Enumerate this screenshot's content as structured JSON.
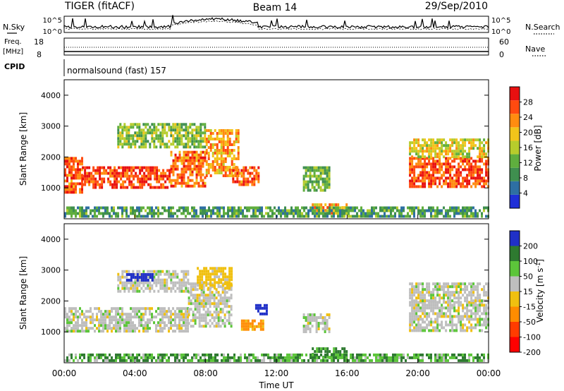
{
  "header": {
    "radar": "TIGER (fitACF)",
    "beam": "Beam 14",
    "date": "29/Sep/2010"
  },
  "summary_panel": {
    "nsky_label": "N.Sky",
    "nsky_ticks": [
      "10^5",
      "10^0"
    ],
    "nsearch_label": "N.Search",
    "nsearch_ticks": [
      "10^5",
      "10^0"
    ],
    "freq_label_line1": "Freq.",
    "freq_label_line2": "[MHz]",
    "freq_ticks": [
      "18",
      "8"
    ],
    "nave_label": "Nave",
    "nave_ticks": [
      "60",
      "0"
    ],
    "cpid_label": "CPID",
    "program": "normalsound (fast) 157"
  },
  "x_axis": {
    "label": "Time UT",
    "ticks": [
      "00:00",
      "04:00",
      "08:00",
      "12:00",
      "16:00",
      "20:00",
      "00:00"
    ]
  },
  "colors": {
    "power_scale": [
      "#1f2fd8",
      "#2e6fa3",
      "#3f8f4f",
      "#5fae3e",
      "#b7cc2c",
      "#f2c41a",
      "#ff8c10",
      "#ff4a10",
      "#e81010"
    ],
    "velocity_scale": [
      "#2030c8",
      "#2e7a30",
      "#5cc53a",
      "#bebebe",
      "#f0c010",
      "#ff8c00",
      "#ff3c00",
      "#ff0000"
    ]
  },
  "chart_data": [
    {
      "type": "heatmap",
      "panel": "power",
      "ylabel": "Slant Range [km]",
      "xlabel": "",
      "xlim_hours": [
        0,
        24
      ],
      "ylim": [
        0,
        4500
      ],
      "yticks": [
        "1000",
        "2000",
        "3000",
        "4000"
      ],
      "colorbar": {
        "label": "Power [dB]",
        "ticks": [
          "28",
          "24",
          "20",
          "16",
          "12",
          "8",
          "4"
        ],
        "range": [
          0,
          32
        ]
      },
      "echo_regions": [
        {
          "t0": 0.0,
          "t1": 1.0,
          "r0": 900,
          "r1": 2000,
          "power_db": 26
        },
        {
          "t0": 1.0,
          "t1": 6.0,
          "r0": 1050,
          "r1": 1700,
          "power_db": 27
        },
        {
          "t0": 6.0,
          "t1": 8.0,
          "r0": 1100,
          "r1": 2200,
          "power_db": 25
        },
        {
          "t0": 8.0,
          "t1": 9.8,
          "r0": 1400,
          "r1": 2900,
          "power_db": 22
        },
        {
          "t0": 9.5,
          "t1": 11.0,
          "r0": 1100,
          "r1": 1700,
          "power_db": 26
        },
        {
          "t0": 3.0,
          "t1": 8.0,
          "r0": 2300,
          "r1": 3100,
          "power_db": 14
        },
        {
          "t0": 13.5,
          "t1": 15.0,
          "r0": 900,
          "r1": 1700,
          "power_db": 12
        },
        {
          "t0": 14.0,
          "t1": 16.0,
          "r0": 200,
          "r1": 500,
          "power_db": 22
        },
        {
          "t0": 19.5,
          "t1": 24.0,
          "r0": 1000,
          "r1": 2000,
          "power_db": 27
        },
        {
          "t0": 19.5,
          "t1": 24.0,
          "r0": 2000,
          "r1": 2600,
          "power_db": 18
        },
        {
          "t0": 0.0,
          "t1": 24.0,
          "r0": 100,
          "r1": 400,
          "power_db": 10
        }
      ]
    },
    {
      "type": "heatmap",
      "panel": "velocity",
      "ylabel": "Slant Range [km]",
      "xlabel": "Time UT",
      "xlim_hours": [
        0,
        24
      ],
      "ylim": [
        0,
        4500
      ],
      "yticks": [
        "1000",
        "2000",
        "3000",
        "4000"
      ],
      "colorbar": {
        "label": "Velocity [m s-1]",
        "ticks": [
          "200",
          "100",
          "50",
          "15",
          "-15",
          "-50",
          "-100",
          "-200"
        ],
        "range": [
          -250,
          250
        ]
      },
      "echo_regions": [
        {
          "t0": 0.0,
          "t1": 7.0,
          "r0": 1000,
          "r1": 1800,
          "velocity": 0
        },
        {
          "t0": 7.0,
          "t1": 9.5,
          "r0": 1200,
          "r1": 2600,
          "velocity": 0
        },
        {
          "t0": 3.0,
          "t1": 7.0,
          "r0": 2300,
          "r1": 3000,
          "velocity": 0
        },
        {
          "t0": 3.5,
          "t1": 5.0,
          "r0": 2700,
          "r1": 2900,
          "velocity": 180
        },
        {
          "t0": 7.5,
          "t1": 9.5,
          "r0": 2400,
          "r1": 3100,
          "velocity": -30
        },
        {
          "t0": 10.0,
          "t1": 11.2,
          "r0": 1100,
          "r1": 1400,
          "velocity": -60
        },
        {
          "t0": 10.8,
          "t1": 11.5,
          "r0": 1600,
          "r1": 1900,
          "velocity": 120
        },
        {
          "t0": 13.5,
          "t1": 15.0,
          "r0": 1000,
          "r1": 1600,
          "velocity": 0
        },
        {
          "t0": 14.0,
          "t1": 16.0,
          "r0": 200,
          "r1": 500,
          "velocity": 40
        },
        {
          "t0": 19.5,
          "t1": 24.0,
          "r0": 1000,
          "r1": 2000,
          "velocity": 0
        },
        {
          "t0": 19.5,
          "t1": 24.0,
          "r0": 2000,
          "r1": 2600,
          "velocity": 0
        },
        {
          "t0": 0.0,
          "t1": 24.0,
          "r0": 50,
          "r1": 300,
          "velocity": 30
        }
      ]
    }
  ]
}
